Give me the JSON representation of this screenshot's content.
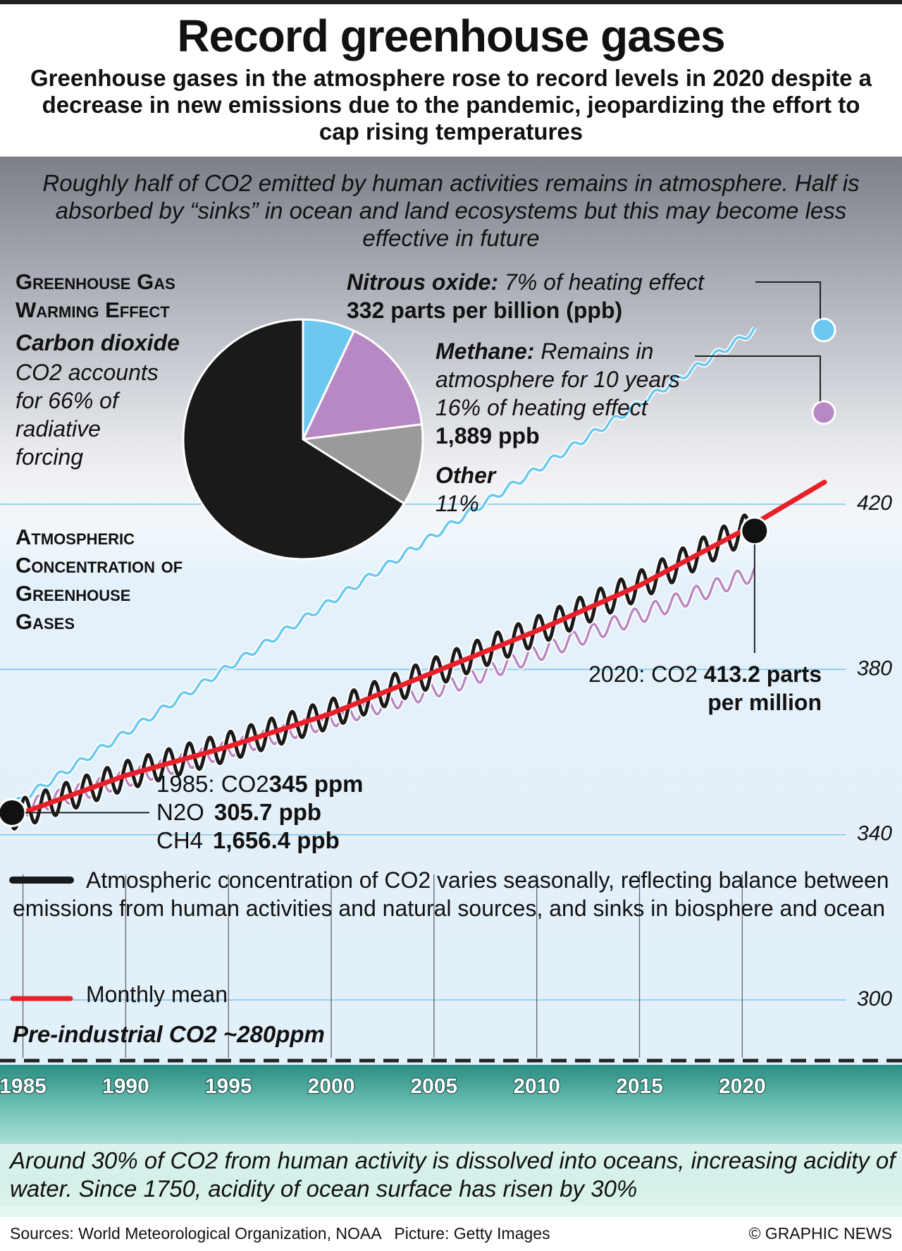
{
  "header": {
    "title": "Record greenhouse gases",
    "subtitle": "Greenhouse gases in the atmosphere rose to record levels in 2020 despite a decrease in new emissions due to the pandemic, jeopardizing the effort to cap rising temperatures"
  },
  "intro": "Roughly half of CO2 emitted by human activities remains in atmosphere. Half is absorbed by “sinks” in ocean and land ecosystems but this may become less effective in future",
  "pie": {
    "heading_line1": "Greenhouse Gas",
    "heading_line2": "Warming Effect",
    "co2_name": "Carbon dioxide",
    "co2_desc_l1": "CO2 accounts",
    "co2_desc_l2": "for 66% of",
    "co2_desc_l3": "radiative",
    "co2_desc_l4": "forcing",
    "n2o_name": "Nitrous oxide:",
    "n2o_desc": " 7% of heating effect",
    "n2o_value": "332 parts per billion (ppb)",
    "ch4_name": "Methane:",
    "ch4_desc_l1": " Remains in",
    "ch4_desc_l2": "atmosphere for 10 years",
    "ch4_desc_l3": "16% of heating effect",
    "ch4_value": "1,889 ppb",
    "other_name": "Other",
    "other_value": "11%"
  },
  "concentration_heading_l1": "Atmospheric",
  "concentration_heading_l2": "Concentration of",
  "concentration_heading_l3": "Greenhouse",
  "concentration_heading_l4": "Gases",
  "annotation_2020": {
    "prefix": "2020: CO2 ",
    "value_l1": "413.2 parts",
    "value_l2": "per million"
  },
  "annotation_1985": {
    "co2_prefix": "1985: CO2 ",
    "co2_value": "345 ppm",
    "n2o_prefix": "N2O ",
    "n2o_value": "305.7 ppb",
    "ch4_prefix": "CH4 ",
    "ch4_value": "1,656.4 ppb"
  },
  "legend": {
    "seasonal": "Atmospheric concentration of CO2 varies seasonally, reflecting balance between emissions from human activities and natural sources, and sinks in biosphere and ocean",
    "mean": "Monthly mean"
  },
  "pre_industrial": "Pre-industrial CO2 ~280ppm",
  "ocean_caption": "Around 30% of CO2 from human activity is dissolved into oceans, increasing acidity of water. Since 1750, acidity of ocean surface has risen by 30%",
  "footer": {
    "sources": "Sources: World Meteorological Organization, NOAA   Picture: Getty Images",
    "credit": "© GRAPHIC NEWS"
  },
  "colors": {
    "co2": "#1a1a1a",
    "ch4": "#b888c4",
    "n2o": "#6cc8ef",
    "other": "#9a9a9a",
    "mean": "#e8202a",
    "gridline": "#7fc6e3"
  },
  "chart_data": [
    {
      "type": "pie",
      "title": "Greenhouse Gas Warming Effect",
      "slices": [
        {
          "name": "Nitrous oxide",
          "value": 7,
          "color": "#6cc8ef"
        },
        {
          "name": "Methane",
          "value": 16,
          "color": "#b888c4"
        },
        {
          "name": "Other",
          "value": 11,
          "color": "#9a9a9a"
        },
        {
          "name": "Carbon dioxide",
          "value": 66,
          "color": "#1a1a1a"
        }
      ]
    },
    {
      "type": "line",
      "title": "Atmospheric Concentration of Greenhouse Gases",
      "ylabel": "",
      "y_ticks": [
        300,
        340,
        380,
        420
      ],
      "ylim": [
        280,
        428
      ],
      "x_ticks": [
        1985,
        1990,
        1995,
        2000,
        2005,
        2010,
        2015,
        2020
      ],
      "xlim": [
        1984.5,
        2024
      ],
      "grid": true,
      "series": [
        {
          "name": "Monthly mean",
          "unit": "ppm",
          "x": [
            1984.5,
            1985,
            1990,
            1995,
            2000,
            2005,
            2010,
            2015,
            2020,
            2024
          ],
          "values": [
            344.5,
            345,
            354,
            361,
            369,
            379,
            389,
            400,
            413.2,
            425
          ],
          "seasonal_amplitude": 3.5
        }
      ],
      "other_series_shown_without_axis": [
        {
          "gas": "CH4",
          "unit": "ppb",
          "start_1985": 1656.4,
          "latest": 1889
        },
        {
          "gas": "N2O",
          "unit": "ppb",
          "start_1985": 305.7,
          "latest": 332
        }
      ]
    }
  ]
}
